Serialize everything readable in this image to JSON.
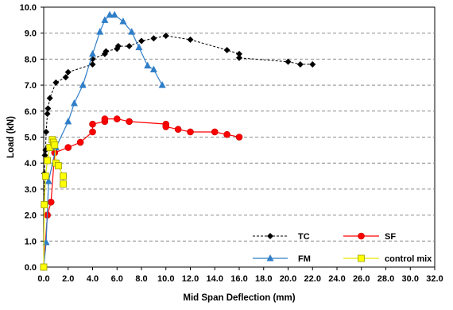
{
  "chart_data": {
    "type": "line",
    "title": "",
    "xlabel": "Mid Span Deflection  (mm)",
    "ylabel": "Load (kN)",
    "xlim": [
      0,
      32
    ],
    "ylim": [
      0,
      10
    ],
    "x_ticks": [
      "0.0",
      "2.0",
      "4.0",
      "6.0",
      "8.0",
      "10.0",
      "12.0",
      "14.0",
      "16.0",
      "18.0",
      "20.0",
      "22.0",
      "24.0",
      "26.0",
      "28.0",
      "30.0",
      "32.0"
    ],
    "y_ticks": [
      "0.0",
      "1.0",
      "2.0",
      "3.0",
      "4.0",
      "5.0",
      "6.0",
      "7.0",
      "8.0",
      "9.0",
      "10.0"
    ],
    "grid": "horizontal dashed",
    "legend_position": "bottom-right",
    "series": [
      {
        "name": "TC",
        "color": "#000000",
        "line_style": "dashed",
        "marker": "diamond",
        "points": [
          [
            0.0,
            0.0
          ],
          [
            0.05,
            3.6
          ],
          [
            0.1,
            4.3
          ],
          [
            0.15,
            4.5
          ],
          [
            0.2,
            5.2
          ],
          [
            0.3,
            5.9
          ],
          [
            0.35,
            6.1
          ],
          [
            0.5,
            6.5
          ],
          [
            1.0,
            7.1
          ],
          [
            1.8,
            7.3
          ],
          [
            2.0,
            7.5
          ],
          [
            4.0,
            7.8
          ],
          [
            4.0,
            8.0
          ],
          [
            5.0,
            8.2
          ],
          [
            5.1,
            8.3
          ],
          [
            6.0,
            8.4
          ],
          [
            6.1,
            8.5
          ],
          [
            7.0,
            8.5
          ],
          [
            8.0,
            8.7
          ],
          [
            9.0,
            8.8
          ],
          [
            10.0,
            8.9
          ],
          [
            12.0,
            8.75
          ],
          [
            15.0,
            8.35
          ],
          [
            16.0,
            8.2
          ],
          [
            16.0,
            8.05
          ],
          [
            20.0,
            7.9
          ],
          [
            21.0,
            7.8
          ],
          [
            22.0,
            7.8
          ]
        ]
      },
      {
        "name": "SF",
        "color": "#ff0000",
        "line_style": "solid",
        "marker": "circle",
        "points": [
          [
            0.0,
            0.0
          ],
          [
            0.3,
            2.0
          ],
          [
            0.6,
            2.5
          ],
          [
            0.9,
            4.4
          ],
          [
            2.0,
            4.6
          ],
          [
            3.0,
            4.8
          ],
          [
            4.0,
            5.2
          ],
          [
            4.0,
            5.5
          ],
          [
            5.0,
            5.6
          ],
          [
            5.0,
            5.7
          ],
          [
            6.0,
            5.7
          ],
          [
            7.0,
            5.6
          ],
          [
            10.0,
            5.5
          ],
          [
            10.0,
            5.4
          ],
          [
            11.0,
            5.3
          ],
          [
            12.0,
            5.2
          ],
          [
            14.0,
            5.2
          ],
          [
            15.0,
            5.1
          ],
          [
            16.0,
            5.0
          ]
        ]
      },
      {
        "name": "FM",
        "color": "#2f7ec8",
        "line_style": "solid",
        "marker": "triangle",
        "points": [
          [
            0.0,
            0.0
          ],
          [
            0.2,
            0.95
          ],
          [
            0.4,
            3.3
          ],
          [
            1.0,
            4.6
          ],
          [
            2.0,
            5.6
          ],
          [
            2.5,
            6.3
          ],
          [
            3.2,
            7.0
          ],
          [
            4.0,
            8.2
          ],
          [
            4.6,
            9.05
          ],
          [
            5.0,
            9.5
          ],
          [
            5.4,
            9.7
          ],
          [
            5.8,
            9.7
          ],
          [
            6.5,
            9.45
          ],
          [
            7.2,
            9.05
          ],
          [
            7.8,
            8.45
          ],
          [
            8.5,
            7.75
          ],
          [
            9.0,
            7.6
          ],
          [
            9.7,
            7.0
          ]
        ]
      },
      {
        "name": "control mix",
        "color": "#e6e600",
        "line_style": "solid",
        "marker": "square",
        "points": [
          [
            0.0,
            0.0
          ],
          [
            0.05,
            2.4
          ],
          [
            0.15,
            3.5
          ],
          [
            0.3,
            4.1
          ],
          [
            0.5,
            4.6
          ],
          [
            0.7,
            4.9
          ],
          [
            0.8,
            4.8
          ],
          [
            0.9,
            4.7
          ],
          [
            1.0,
            4.0
          ],
          [
            1.2,
            3.9
          ],
          [
            1.6,
            3.5
          ],
          [
            1.6,
            3.2
          ]
        ]
      }
    ]
  }
}
